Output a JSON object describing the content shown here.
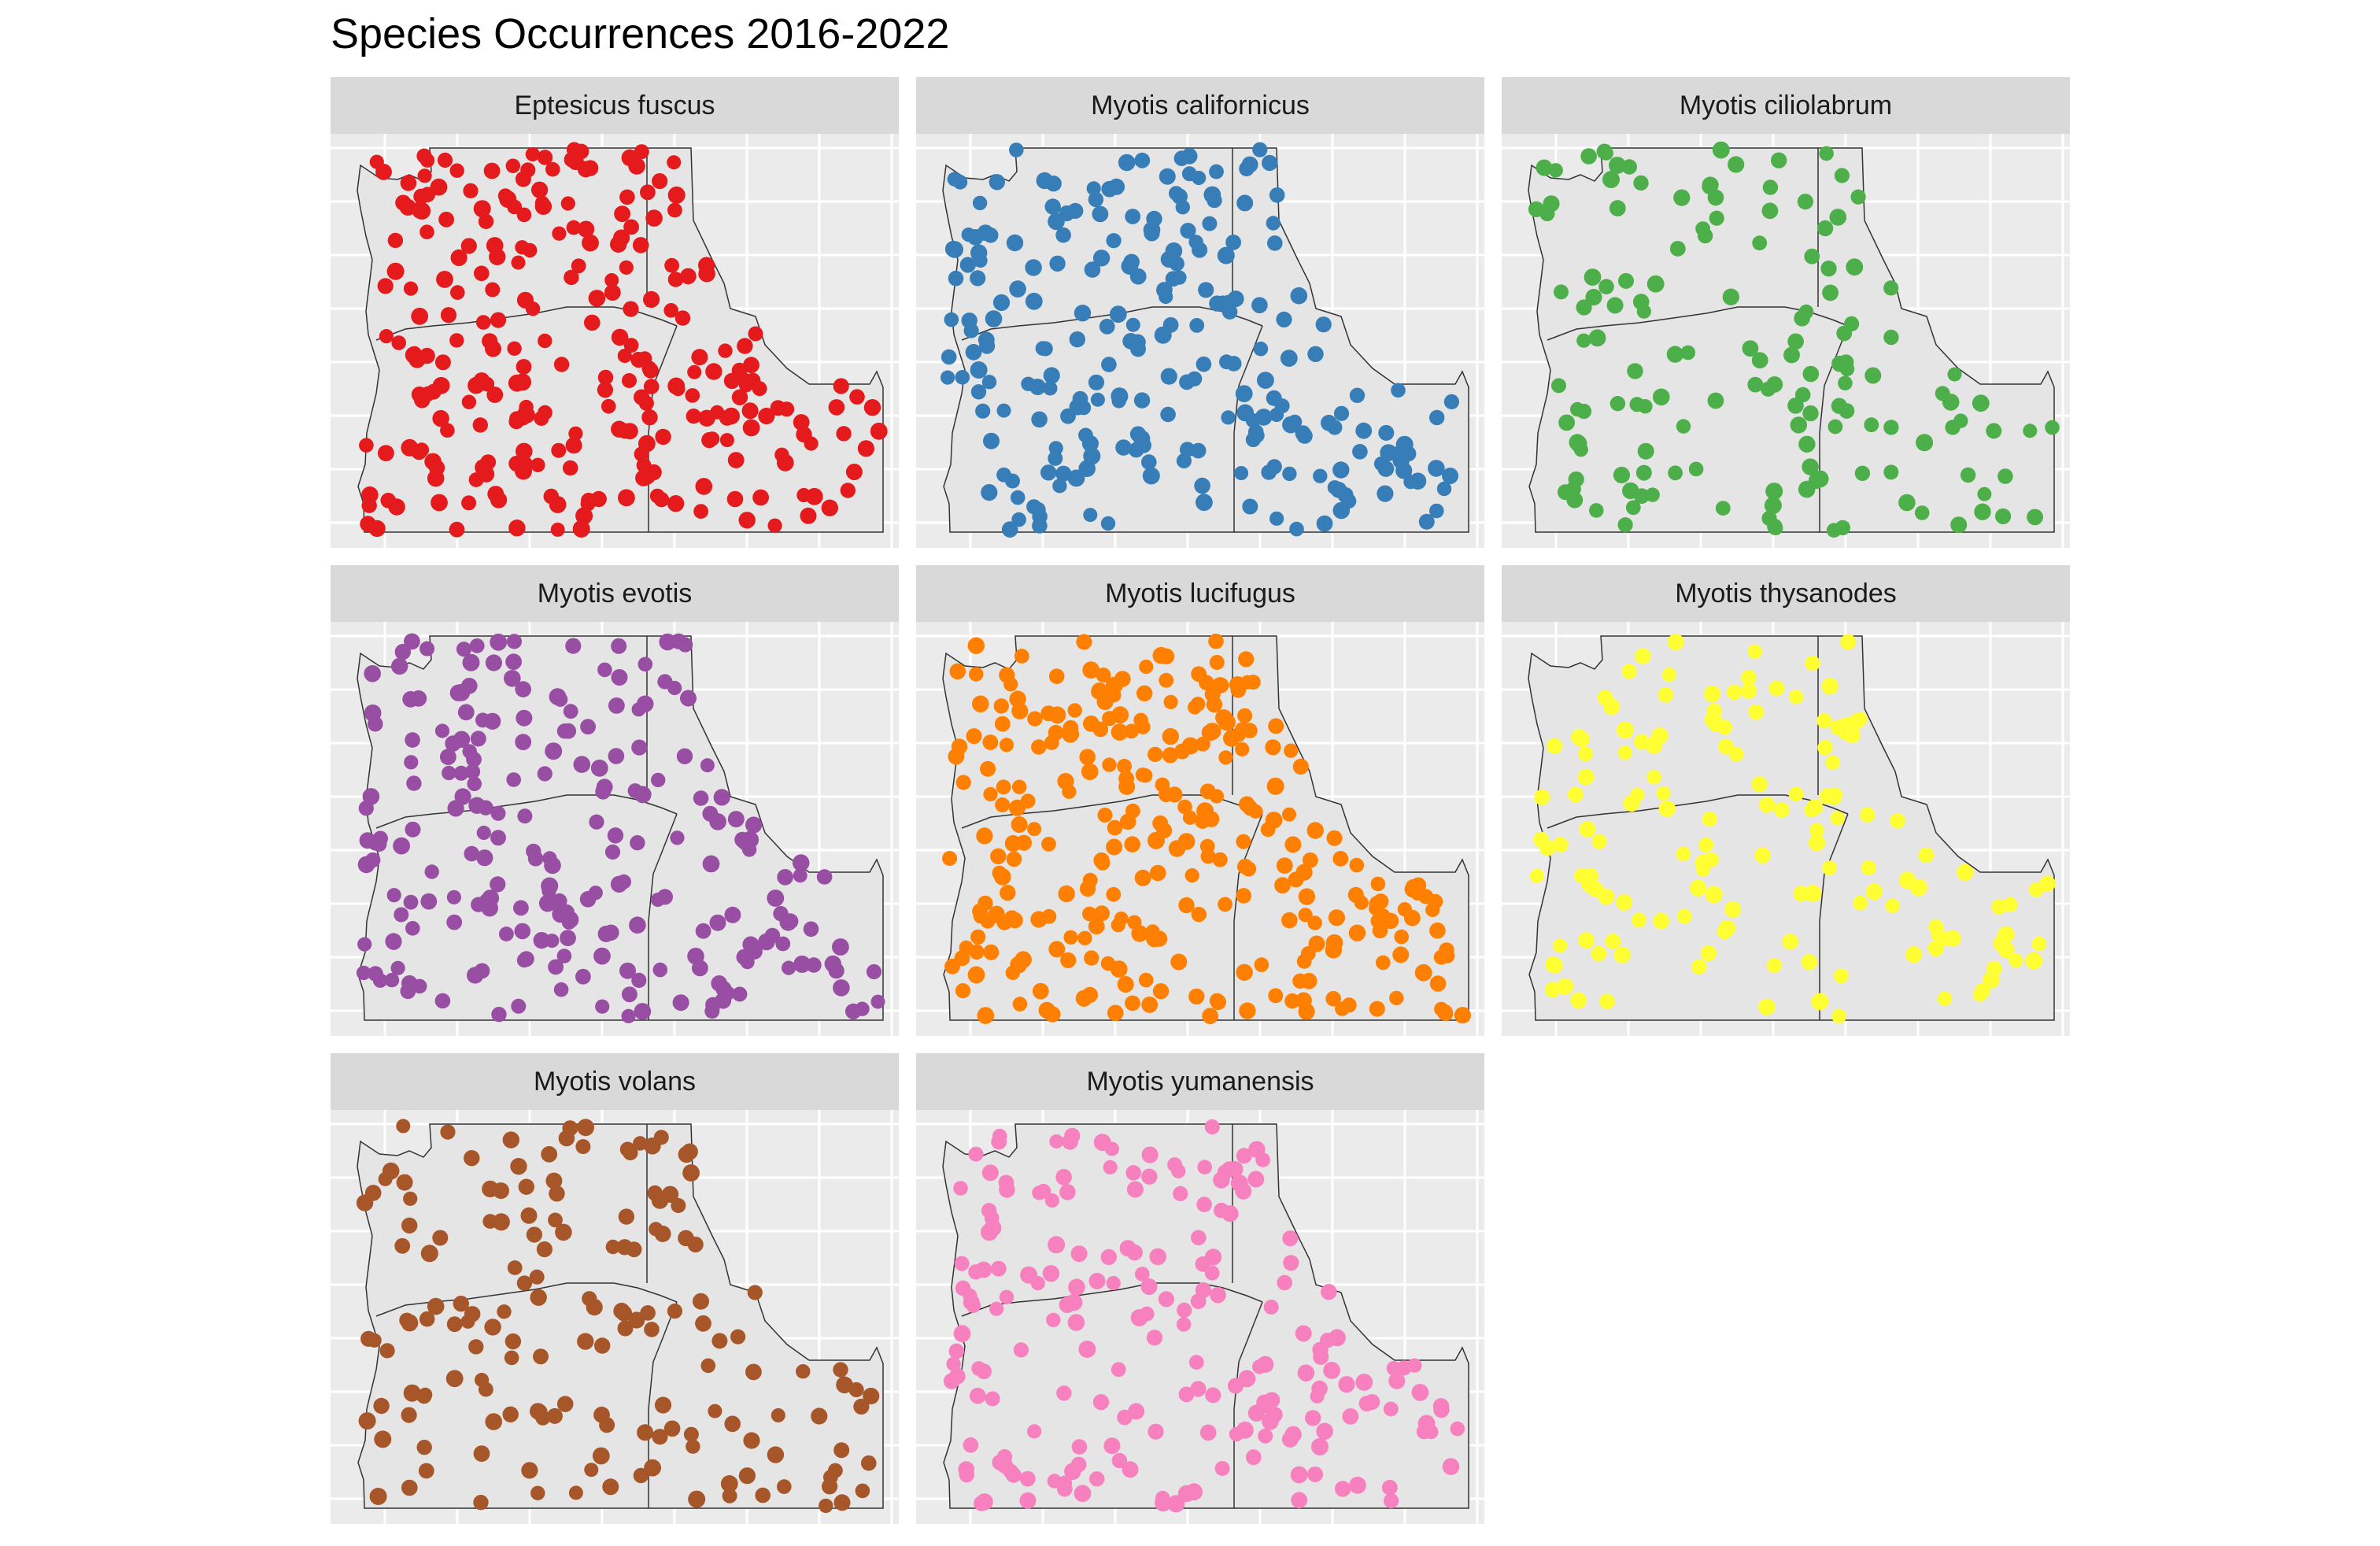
{
  "title": "Species Occurrences 2016-2022",
  "styles": {
    "panel_background": "#ebebeb",
    "grid_color": "#ffffff",
    "land_fill": "#e5e5e5",
    "border_color": "#333333",
    "strip_color": "#d9d9d9"
  },
  "panels": [
    {
      "species": "Eptesicus fuscus",
      "color": "#e41a1c",
      "density": 1.0
    },
    {
      "species": "Myotis californicus",
      "color": "#377eb8",
      "density": 0.9
    },
    {
      "species": "Myotis ciliolabrum",
      "color": "#4daf4a",
      "density": 0.55
    },
    {
      "species": "Myotis evotis",
      "color": "#984ea3",
      "density": 0.85
    },
    {
      "species": "Myotis lucifugus",
      "color": "#ff7f00",
      "density": 1.1
    },
    {
      "species": "Myotis thysanodes",
      "color": "#ffff33",
      "density": 0.55
    },
    {
      "species": "Myotis volans",
      "color": "#a65628",
      "density": 0.6
    },
    {
      "species": "Myotis yumanensis",
      "color": "#f781bf",
      "density": 0.75
    }
  ]
}
